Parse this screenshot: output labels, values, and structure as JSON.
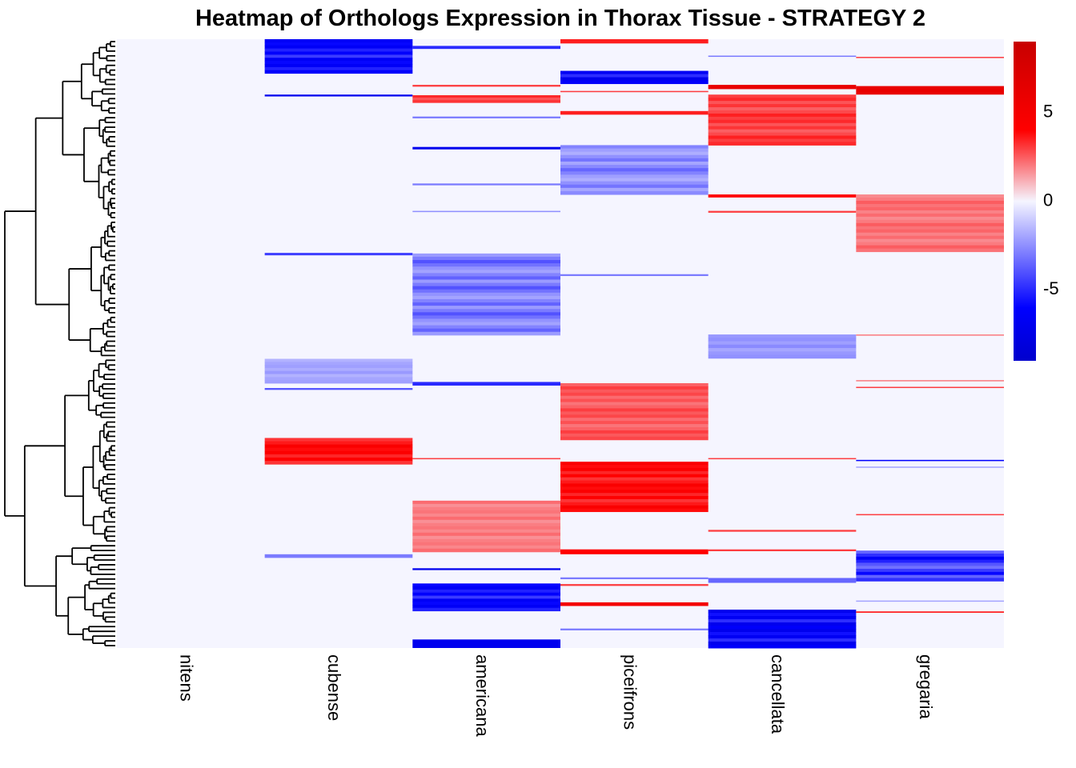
{
  "chart_data": {
    "type": "heatmap",
    "title": "Heatmap of Orthologs Expression in Thorax Tissue - STRATEGY 2",
    "columns": [
      "nitens",
      "cubense",
      "americana",
      "piceifrons",
      "cancellata",
      "gregaria"
    ],
    "row_range": [
      0,
      1
    ],
    "color_scale": {
      "min": -9,
      "max": 9,
      "stops": [
        {
          "value": -9,
          "color": "#0000CD"
        },
        {
          "value": -6,
          "color": "#0000FF"
        },
        {
          "value": 0,
          "color": "#F5F5FF"
        },
        {
          "value": 4,
          "color": "#FF0000"
        },
        {
          "value": 9,
          "color": "#C80000"
        }
      ],
      "ticks": [
        {
          "value": 5,
          "label": "5"
        },
        {
          "value": 0,
          "label": "0"
        },
        {
          "value": -5,
          "label": "-5"
        }
      ],
      "baseline_color": "#F5F5FF"
    },
    "dendrogram": "hierarchical clustering of rows (left side)",
    "blocks": [
      {
        "col": 1,
        "start": 0.0,
        "end": 0.056,
        "value": -6.5,
        "pattern": "dark"
      },
      {
        "col": 1,
        "start": 0.091,
        "end": 0.094,
        "value": -7
      },
      {
        "col": 1,
        "start": 0.351,
        "end": 0.355,
        "value": -4.5
      },
      {
        "col": 1,
        "start": 0.525,
        "end": 0.565,
        "value": -3,
        "pattern": "light"
      },
      {
        "col": 1,
        "start": 0.573,
        "end": 0.576,
        "value": -4
      },
      {
        "col": 1,
        "start": 0.655,
        "end": 0.698,
        "value": 4.5,
        "pattern": "warm"
      },
      {
        "col": 1,
        "start": 0.846,
        "end": 0.852,
        "value": -3
      },
      {
        "col": 2,
        "start": 0.011,
        "end": 0.016,
        "value": -5
      },
      {
        "col": 2,
        "start": 0.075,
        "end": 0.078,
        "value": 3
      },
      {
        "col": 2,
        "start": 0.092,
        "end": 0.104,
        "value": 3.5,
        "pattern": "warm"
      },
      {
        "col": 2,
        "start": 0.127,
        "end": 0.13,
        "value": -3
      },
      {
        "col": 2,
        "start": 0.177,
        "end": 0.181,
        "value": -7
      },
      {
        "col": 2,
        "start": 0.237,
        "end": 0.24,
        "value": -3
      },
      {
        "col": 2,
        "start": 0.282,
        "end": 0.284,
        "value": -2.5
      },
      {
        "col": 2,
        "start": 0.352,
        "end": 0.486,
        "value": -4,
        "pattern": "mix"
      },
      {
        "col": 2,
        "start": 0.563,
        "end": 0.569,
        "value": -5
      },
      {
        "col": 2,
        "start": 0.688,
        "end": 0.69,
        "value": 3
      },
      {
        "col": 2,
        "start": 0.758,
        "end": 0.842,
        "value": 3,
        "pattern": "light"
      },
      {
        "col": 2,
        "start": 0.869,
        "end": 0.872,
        "value": -7
      },
      {
        "col": 2,
        "start": 0.894,
        "end": 0.939,
        "value": -6.5,
        "pattern": "dark"
      },
      {
        "col": 2,
        "start": 0.986,
        "end": 1.0,
        "value": -7
      },
      {
        "col": 3,
        "start": 0.0,
        "end": 0.007,
        "value": 3.5
      },
      {
        "col": 3,
        "start": 0.052,
        "end": 0.073,
        "value": -7,
        "pattern": "dark"
      },
      {
        "col": 3,
        "start": 0.085,
        "end": 0.087,
        "value": 3
      },
      {
        "col": 3,
        "start": 0.118,
        "end": 0.124,
        "value": 3.5
      },
      {
        "col": 3,
        "start": 0.174,
        "end": 0.255,
        "value": -3.5,
        "pattern": "mix"
      },
      {
        "col": 3,
        "start": 0.386,
        "end": 0.389,
        "value": -3
      },
      {
        "col": 3,
        "start": 0.565,
        "end": 0.658,
        "value": 3,
        "pattern": "warm"
      },
      {
        "col": 3,
        "start": 0.694,
        "end": 0.776,
        "value": 4.5,
        "pattern": "warm"
      },
      {
        "col": 3,
        "start": 0.838,
        "end": 0.846,
        "value": 4
      },
      {
        "col": 3,
        "start": 0.884,
        "end": 0.887,
        "value": -3
      },
      {
        "col": 3,
        "start": 0.895,
        "end": 0.898,
        "value": 3
      },
      {
        "col": 3,
        "start": 0.925,
        "end": 0.931,
        "value": 5
      },
      {
        "col": 3,
        "start": 0.968,
        "end": 0.971,
        "value": -3
      },
      {
        "col": 4,
        "start": 0.027,
        "end": 0.029,
        "value": -3
      },
      {
        "col": 4,
        "start": 0.075,
        "end": 0.082,
        "value": 6
      },
      {
        "col": 4,
        "start": 0.091,
        "end": 0.174,
        "value": 3.5,
        "pattern": "warm"
      },
      {
        "col": 4,
        "start": 0.255,
        "end": 0.26,
        "value": 4
      },
      {
        "col": 4,
        "start": 0.282,
        "end": 0.285,
        "value": 3
      },
      {
        "col": 4,
        "start": 0.485,
        "end": 0.524,
        "value": -3.5,
        "pattern": "light"
      },
      {
        "col": 4,
        "start": 0.688,
        "end": 0.69,
        "value": 3
      },
      {
        "col": 4,
        "start": 0.806,
        "end": 0.809,
        "value": 3
      },
      {
        "col": 4,
        "start": 0.838,
        "end": 0.841,
        "value": 3
      },
      {
        "col": 4,
        "start": 0.885,
        "end": 0.893,
        "value": -3.5
      },
      {
        "col": 4,
        "start": 0.937,
        "end": 1.0,
        "value": -7,
        "pattern": "dark"
      },
      {
        "col": 5,
        "start": 0.029,
        "end": 0.031,
        "value": 3
      },
      {
        "col": 5,
        "start": 0.077,
        "end": 0.091,
        "value": 6
      },
      {
        "col": 5,
        "start": 0.255,
        "end": 0.349,
        "value": 2.5,
        "pattern": "warm"
      },
      {
        "col": 5,
        "start": 0.485,
        "end": 0.487,
        "value": 2
      },
      {
        "col": 5,
        "start": 0.56,
        "end": 0.562,
        "value": 2
      },
      {
        "col": 5,
        "start": 0.571,
        "end": 0.573,
        "value": 3
      },
      {
        "col": 5,
        "start": 0.691,
        "end": 0.693,
        "value": -6
      },
      {
        "col": 5,
        "start": 0.702,
        "end": 0.704,
        "value": -2
      },
      {
        "col": 5,
        "start": 0.78,
        "end": 0.782,
        "value": 3
      },
      {
        "col": 5,
        "start": 0.84,
        "end": 0.89,
        "value": -6.5,
        "pattern": "mix"
      },
      {
        "col": 5,
        "start": 0.922,
        "end": 0.924,
        "value": -2
      },
      {
        "col": 5,
        "start": 0.94,
        "end": 0.942,
        "value": 4
      }
    ]
  }
}
